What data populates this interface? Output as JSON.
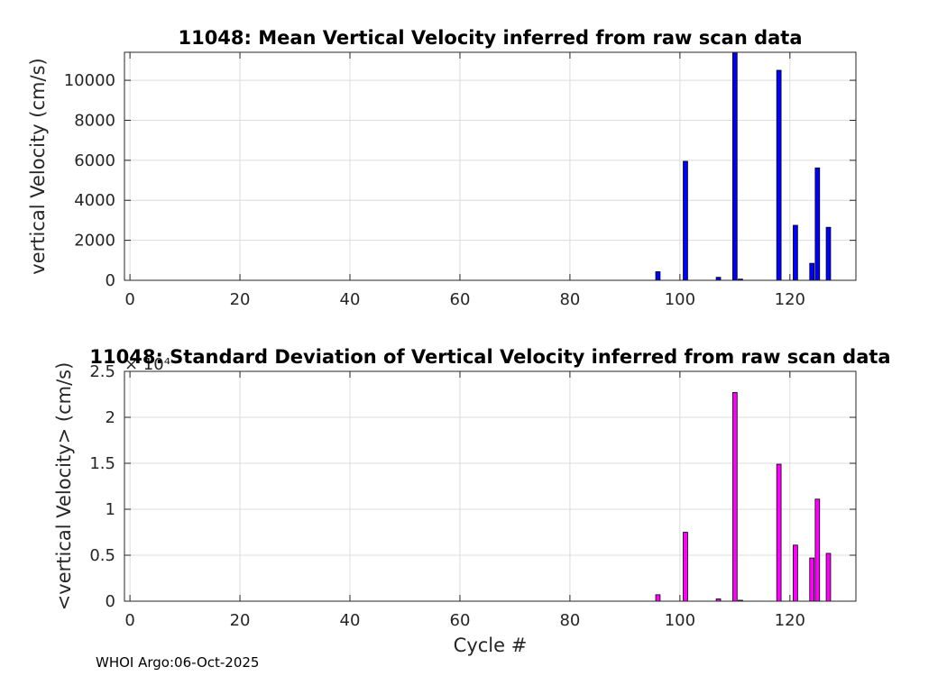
{
  "chart_data": [
    {
      "type": "bar",
      "title": "11048: Mean Vertical Velocity inferred from raw scan data",
      "xlabel": "",
      "ylabel": "vertical Velocity (cm/s)",
      "xlim": [
        -1,
        132
      ],
      "ylim": [
        0,
        11400
      ],
      "xticks": [
        0,
        20,
        40,
        60,
        80,
        100,
        120
      ],
      "yticks": [
        0,
        2000,
        4000,
        6000,
        8000,
        10000
      ],
      "ytick_labels": [
        "0",
        "2000",
        "4000",
        "6000",
        "8000",
        "10000"
      ],
      "exponent_label": "",
      "grid": true,
      "bar_color": "#0000ff",
      "x": [
        96,
        101,
        107,
        110,
        111,
        118,
        121,
        124,
        125,
        127
      ],
      "values": [
        430,
        5950,
        150,
        11400,
        60,
        10500,
        2750,
        850,
        5620,
        2650
      ]
    },
    {
      "type": "bar",
      "title": "11048: Standard Deviation of Vertical Velocity inferred from raw scan data",
      "xlabel": "Cycle #",
      "ylabel": "<vertical Velocity> (cm/s)",
      "xlim": [
        -1,
        132
      ],
      "ylim": [
        0,
        25000
      ],
      "xticks": [
        0,
        20,
        40,
        60,
        80,
        100,
        120
      ],
      "yticks": [
        0,
        5000,
        10000,
        15000,
        20000,
        25000
      ],
      "ytick_labels": [
        "0",
        "0.5",
        "1",
        "1.5",
        "2",
        "2.5"
      ],
      "exponent_label": "× 10⁴",
      "grid": true,
      "bar_color": "#ff00ff",
      "x": [
        96,
        101,
        107,
        110,
        111,
        118,
        121,
        124,
        125,
        127
      ],
      "values": [
        700,
        7500,
        250,
        22700,
        100,
        14900,
        6100,
        4700,
        11100,
        5200
      ]
    }
  ],
  "footer": "WHOI Argo:06-Oct-2025"
}
